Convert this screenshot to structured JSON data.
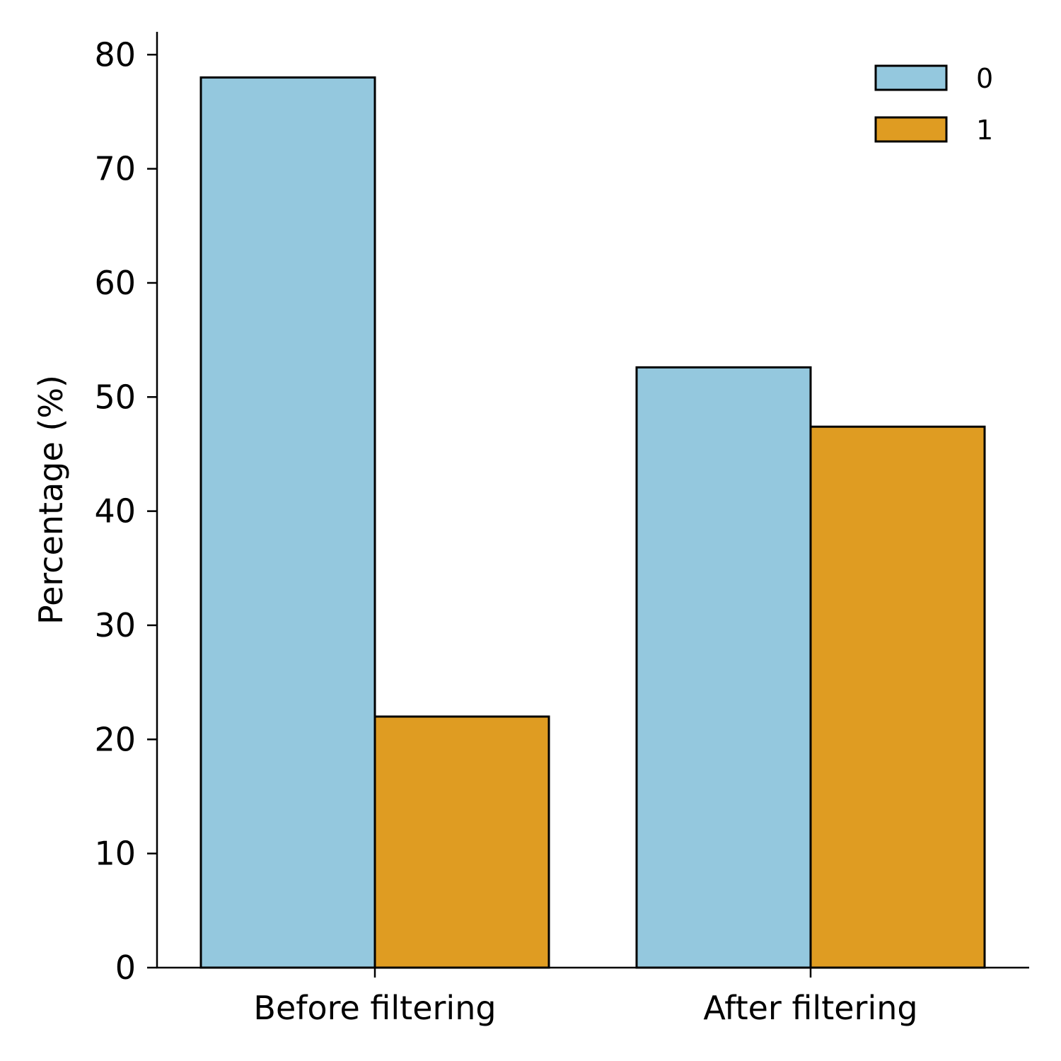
{
  "chart_data": {
    "type": "bar",
    "categories": [
      "Before filtering",
      "After filtering"
    ],
    "series": [
      {
        "name": "0",
        "values": [
          78.0,
          52.6
        ],
        "color": "#94c8de"
      },
      {
        "name": "1",
        "values": [
          22.0,
          47.4
        ],
        "color": "#df9c22"
      }
    ],
    "title": "",
    "xlabel": "",
    "ylabel": "Percentage (%)",
    "ylim": [
      0,
      82
    ],
    "yticks": [
      0,
      10,
      20,
      30,
      40,
      50,
      60,
      70,
      80
    ],
    "grid": false,
    "legend_position": "top-right",
    "edge_color": "#000000"
  }
}
